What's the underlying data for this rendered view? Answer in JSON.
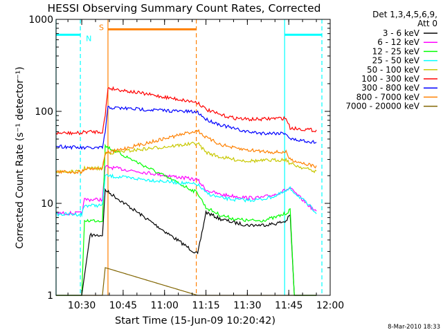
{
  "chart_data": {
    "type": "line",
    "title": "HESSI Observing Summary Count Rates, Corrected",
    "ylabel": "Corrected Count Rate (s⁻¹ detector⁻¹)",
    "xlabel": "Start Time (15-Jun-09 10:20:42)",
    "footer": "8-Mar-2010 18:33",
    "legend_header": [
      "Det 1,3,4,5,6,9,",
      "Att 0"
    ],
    "legend_position": "right",
    "y_scale": "log",
    "ylim": [
      1,
      1000
    ],
    "xlim": [
      "10:20:42",
      "12:00:00"
    ],
    "x_ticks": [
      "10:30",
      "10:45",
      "11:00",
      "11:15",
      "11:30",
      "11:45",
      "12:00"
    ],
    "y_ticks": [
      "1",
      "10",
      "100",
      "1000"
    ],
    "series": [
      {
        "name": "3 - 6 keV",
        "color": "#000000",
        "x": [
          "10:20:42",
          "10:30:00",
          "10:33:00",
          "10:37:30",
          "10:38:30",
          "11:12:00",
          "11:15:00",
          "11:20:00",
          "11:25:00",
          "11:30:00",
          "11:35:00",
          "11:40:00",
          "11:44:00",
          "11:45:30",
          "11:47:00",
          "11:55:00"
        ],
        "y": [
          1,
          1,
          4.5,
          4.5,
          14,
          2.8,
          8,
          6.8,
          6.2,
          5.8,
          5.8,
          6.0,
          6.4,
          7.5,
          1,
          1
        ]
      },
      {
        "name": "6 - 12 keV",
        "color": "#ff00ff",
        "x": [
          "10:20:42",
          "10:30:00",
          "10:31:00",
          "10:37:30",
          "10:38:30",
          "11:12:00",
          "11:15:00",
          "11:20:00",
          "11:25:00",
          "11:30:00",
          "11:35:00",
          "11:40:00",
          "11:44:00",
          "11:45:30",
          "11:55:00"
        ],
        "y": [
          7.8,
          7.8,
          11,
          11,
          25,
          18,
          14,
          12.5,
          12,
          11.5,
          11.5,
          12.5,
          14,
          14.5,
          8
        ]
      },
      {
        "name": "12 - 25 keV",
        "color": "#00ff00",
        "x": [
          "10:20:42",
          "10:30:00",
          "10:31:00",
          "10:37:30",
          "10:38:30",
          "11:12:00",
          "11:15:00",
          "11:20:00",
          "11:25:00",
          "11:30:00",
          "11:35:00",
          "11:40:00",
          "11:44:00",
          "11:45:30",
          "11:47:00",
          "11:55:00"
        ],
        "y": [
          1,
          1,
          6.5,
          6.5,
          42,
          13,
          9,
          7.5,
          6.8,
          6.5,
          6.5,
          7.0,
          7.8,
          8.5,
          1,
          1
        ]
      },
      {
        "name": "25 - 50 keV",
        "color": "#00ffff",
        "x": [
          "10:20:42",
          "10:30:00",
          "10:31:00",
          "10:37:30",
          "10:38:30",
          "11:12:00",
          "11:15:00",
          "11:20:00",
          "11:25:00",
          "11:30:00",
          "11:35:00",
          "11:40:00",
          "11:44:00",
          "11:45:30",
          "11:55:00"
        ],
        "y": [
          7.6,
          7.6,
          9.5,
          9.5,
          20,
          16,
          13,
          11.5,
          11,
          10.8,
          11,
          12,
          13.5,
          14.5,
          8
        ]
      },
      {
        "name": "50 - 100 keV",
        "color": "#c8c800",
        "x": [
          "10:20:42",
          "10:30:00",
          "10:31:00",
          "10:37:30",
          "10:38:30",
          "11:12:00",
          "11:15:00",
          "11:20:00",
          "11:25:00",
          "11:30:00",
          "11:35:00",
          "11:40:00",
          "11:44:00",
          "11:45:30",
          "11:55:00"
        ],
        "y": [
          22,
          22,
          24,
          24,
          35,
          45,
          36,
          32,
          30,
          29,
          29,
          29.5,
          30,
          27,
          22
        ]
      },
      {
        "name": "100 - 300 keV",
        "color": "#ff0000",
        "x": [
          "10:20:42",
          "10:30:00",
          "10:31:00",
          "10:37:30",
          "10:38:30",
          "10:39:30",
          "11:12:00",
          "11:15:00",
          "11:20:00",
          "11:25:00",
          "11:30:00",
          "11:35:00",
          "11:40:00",
          "11:44:00",
          "11:45:30",
          "11:55:00"
        ],
        "y": [
          58,
          58,
          60,
          60,
          90,
          180,
          125,
          105,
          92,
          85,
          82,
          82,
          84,
          84,
          66,
          62
        ]
      },
      {
        "name": "300 - 800 keV",
        "color": "#0000ff",
        "x": [
          "10:20:42",
          "10:30:00",
          "10:31:00",
          "10:37:30",
          "10:38:30",
          "10:39:30",
          "11:12:00",
          "11:15:00",
          "11:20:00",
          "11:25:00",
          "11:30:00",
          "11:35:00",
          "11:40:00",
          "11:44:00",
          "11:45:30",
          "11:55:00"
        ],
        "y": [
          42,
          40,
          40,
          40,
          60,
          110,
          98,
          82,
          72,
          65,
          60,
          58,
          58,
          58,
          50,
          46
        ]
      },
      {
        "name": "800 - 7000 keV",
        "color": "#ff8000",
        "x": [
          "10:20:42",
          "10:30:00",
          "10:31:00",
          "10:37:30",
          "10:38:30",
          "11:12:00",
          "11:15:00",
          "11:20:00",
          "11:25:00",
          "11:30:00",
          "11:35:00",
          "11:40:00",
          "11:44:00",
          "11:45:30",
          "11:55:00"
        ],
        "y": [
          22,
          22,
          24,
          24,
          35,
          62,
          52,
          44,
          40,
          38,
          37,
          36,
          36,
          30,
          25
        ]
      },
      {
        "name": "7000 - 20000 keV",
        "color": "#806400",
        "x": [
          "10:20:42",
          "10:37:30",
          "10:38:30",
          "11:12:00",
          "11:55:00"
        ],
        "y": [
          1,
          1,
          2,
          1,
          1
        ]
      }
    ],
    "indicators": {
      "saa": {
        "label": "S",
        "color": "#ff8000",
        "level": 780,
        "start": "10:39:30",
        "end": "11:11:30"
      },
      "night": {
        "label": "N",
        "color": "#00ffff",
        "level": 680,
        "segments": [
          [
            "10:20:42",
            "10:29:30"
          ],
          [
            "11:43:30",
            "11:57:00"
          ]
        ]
      },
      "vlines": [
        {
          "time": "10:29:30",
          "color": "#00ffff",
          "dashed": true
        },
        {
          "time": "10:39:30",
          "color": "#ff8000",
          "dashed": false
        },
        {
          "time": "11:11:30",
          "color": "#ff8000",
          "dashed": true
        },
        {
          "time": "11:43:30",
          "color": "#00ffff",
          "dashed": false
        },
        {
          "time": "11:57:00",
          "color": "#00ffff",
          "dashed": true
        },
        {
          "time": "10:20:42",
          "color": "#00ffff",
          "dashed": false
        }
      ]
    }
  }
}
